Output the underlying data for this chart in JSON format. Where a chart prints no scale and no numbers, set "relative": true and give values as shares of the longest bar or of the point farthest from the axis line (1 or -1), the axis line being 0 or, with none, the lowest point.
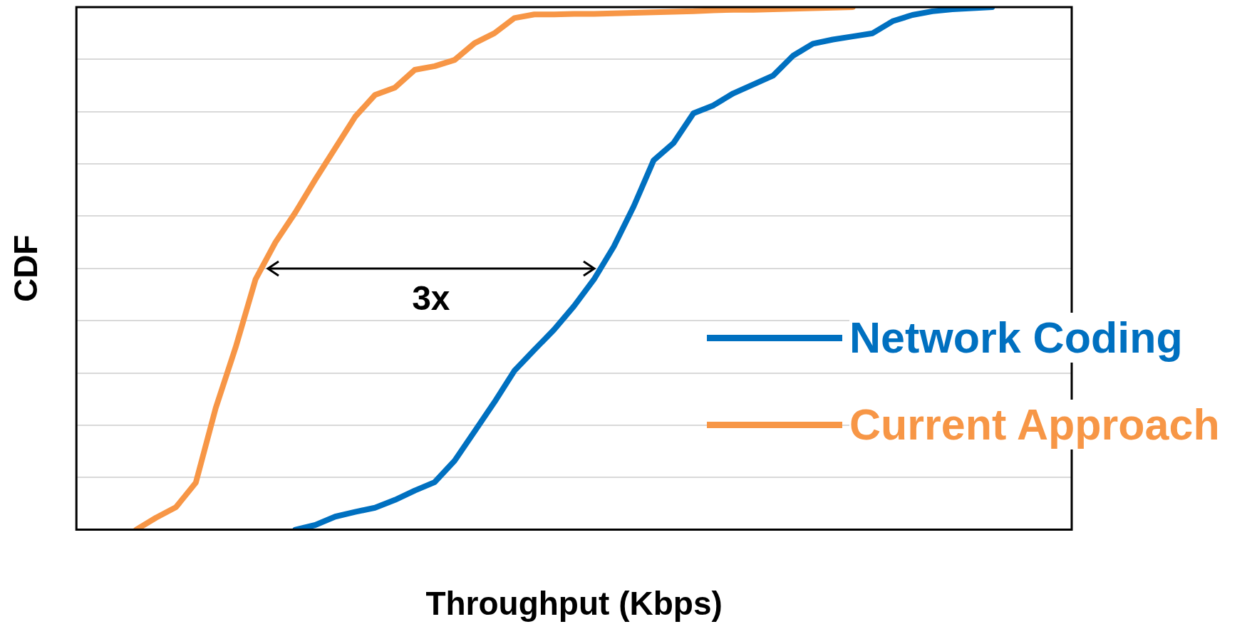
{
  "chart_data": {
    "type": "line",
    "relative": true,
    "xlabel": "Throughput (Kbps)",
    "ylabel": "CDF",
    "categories": [
      null,
      null,
      null,
      null,
      null,
      null,
      null,
      null,
      null,
      null,
      null,
      null,
      null,
      null,
      null,
      null,
      null,
      null,
      null,
      null,
      null,
      null,
      null,
      null,
      null,
      null,
      null,
      null,
      null,
      null,
      null,
      null,
      null,
      null,
      null,
      null,
      null,
      null,
      null,
      null,
      null,
      null,
      null,
      null,
      null,
      null,
      null,
      null,
      null,
      null,
      null
    ],
    "grid": "y",
    "legend": "right",
    "marker": "none",
    "line_style": "solid",
    "annotations": [
      "3x"
    ],
    "series": [
      {
        "name": "Network Coding",
        "color": "#0070c0",
        "values": [
          null,
          null,
          null,
          null,
          null,
          null,
          null,
          null,
          null,
          null,
          null,
          0,
          0.009,
          0.025,
          0.034,
          0.042,
          0.057,
          0.075,
          0.091,
          0.132,
          0.188,
          0.244,
          0.304,
          0.344,
          0.383,
          0.428,
          0.479,
          0.542,
          0.619,
          0.707,
          0.74,
          0.797,
          0.812,
          0.835,
          0.852,
          0.869,
          0.907,
          0.93,
          0.938,
          0.944,
          0.95,
          0.973,
          0.985,
          0.992,
          0.996,
          0.998,
          1,
          null,
          null,
          null,
          null
        ]
      },
      {
        "name": "Current Approach",
        "color": "#f79646",
        "values": [
          null,
          null,
          null,
          0,
          0.023,
          0.043,
          0.09,
          0.233,
          0.349,
          0.479,
          0.55,
          0.607,
          0.67,
          0.73,
          0.79,
          0.832,
          0.846,
          0.88,
          0.887,
          0.899,
          0.931,
          0.95,
          0.979,
          0.986,
          0.986,
          0.987,
          0.987,
          0.988,
          0.989,
          0.99,
          0.991,
          0.992,
          0.994,
          0.995,
          0.995,
          0.996,
          0.997,
          0.998,
          0.999,
          1,
          null,
          null,
          null,
          null,
          null,
          null,
          null,
          null,
          null,
          null,
          null
        ]
      }
    ]
  }
}
